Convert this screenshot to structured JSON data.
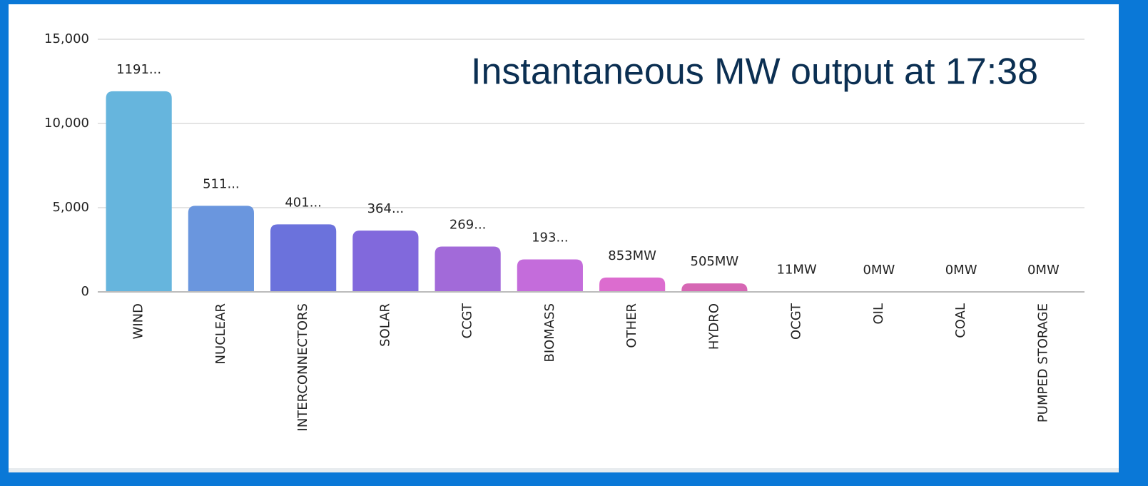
{
  "chart_data": {
    "type": "bar",
    "title": "Instantaneous MW output at 17:38",
    "categories": [
      "WIND",
      "NUCLEAR",
      "INTERCONNECTORS",
      "SOLAR",
      "CCGT",
      "BIOMASS",
      "OTHER",
      "HYDRO",
      "OCGT",
      "OIL",
      "COAL",
      "PUMPED STORAGE"
    ],
    "values": [
      11910,
      5110,
      4010,
      3640,
      2690,
      1930,
      853,
      505,
      11,
      0,
      0,
      0
    ],
    "value_labels": [
      "1191...",
      "511...",
      "401...",
      "364...",
      "269...",
      "193...",
      "853MW",
      "505MW",
      "11MW",
      "0MW",
      "0MW",
      "0MW"
    ],
    "colors": [
      "#66b5dd",
      "#6a96de",
      "#6b72dc",
      "#8169dc",
      "#a26ad9",
      "#c46cdb",
      "#dc6ccf",
      "#d667b4",
      "#d667a8",
      "#d667a8",
      "#d667a8",
      "#d667a8"
    ],
    "ylim": [
      0,
      15000
    ],
    "yticks": [
      0,
      {
        "value": 5000,
        "label": "5,000"
      },
      {
        "value": 10000,
        "label": "10,000"
      },
      {
        "value": 15000,
        "label": "15,000"
      }
    ],
    "grid": true
  }
}
